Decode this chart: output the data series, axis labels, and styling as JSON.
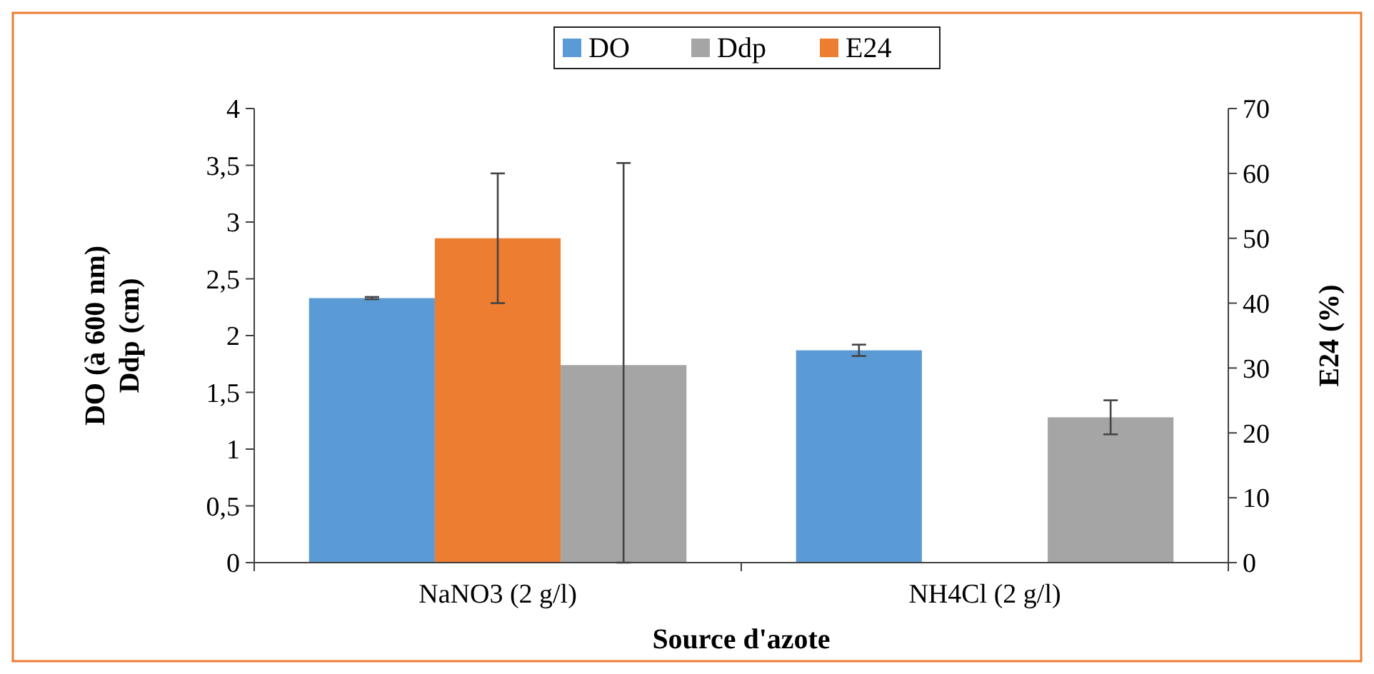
{
  "chart_data": {
    "type": "bar",
    "xlabel": "Source d'azote",
    "ylabel": "DO (à 600 nm)\nDdp (cm)",
    "y2label": "E24 (%)",
    "categories": [
      "NaNO3 (2 g/l)",
      "NH4Cl (2 g/l)"
    ],
    "series": [
      {
        "name": "DO",
        "color": "#5b9bd5",
        "values": [
          2.33,
          1.87
        ],
        "errors": [
          0.01,
          0.05
        ]
      },
      {
        "name": "Ddp",
        "color": "#a5a5a5",
        "values": [
          1.74,
          1.28
        ],
        "errors": [
          [
            0,
            3.52
          ],
          0.15
        ]
      },
      {
        "name": "E24",
        "color": "#ed7d31",
        "axis": "y2",
        "values": [
          50,
          null
        ],
        "errors": [
          10,
          null
        ]
      }
    ],
    "ylim": [
      0,
      4
    ],
    "yticks": [
      0,
      {
        "value": 0.5,
        "label": "0,5"
      },
      1,
      {
        "value": 1.5,
        "label": "1,5"
      },
      2,
      {
        "value": 2.5,
        "label": "2,5"
      },
      3,
      {
        "value": 3.5,
        "label": "3,5"
      },
      4
    ],
    "y2lim": [
      0,
      70
    ],
    "y2ticks": [
      0,
      10,
      20,
      30,
      40,
      50,
      60,
      70
    ],
    "legend": "top"
  }
}
